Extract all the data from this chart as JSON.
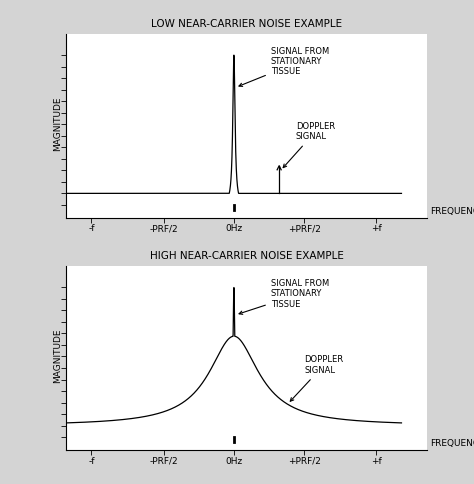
{
  "top_title": "LOW NEAR-CARRIER NOISE EXAMPLE",
  "bottom_title": "HIGH NEAR-CARRIER NOISE EXAMPLE",
  "ylabel": "MAGNITUDE",
  "xlabel": "FREQUENCY",
  "x_tick_labels": [
    "-f",
    "-PRF/2",
    "0Hz",
    "+PRF/2",
    "+f"
  ],
  "bg_color": "#d4d4d4",
  "plot_bg_color": "#ffffff",
  "line_color": "#000000",
  "font_size_title": 7.5,
  "font_size_label": 6.5,
  "font_size_annot": 6.0,
  "annotation_tissue": "SIGNAL FROM\nSTATIONARY\nTISSUE",
  "annotation_doppler": "DOPPLER\nSIGNAL",
  "x_ticks": [
    -0.85,
    -0.42,
    0.0,
    0.42,
    0.85
  ],
  "xlim": [
    -1.0,
    1.15
  ],
  "ylim": [
    -0.08,
    1.05
  ],
  "baseline": 0.07
}
